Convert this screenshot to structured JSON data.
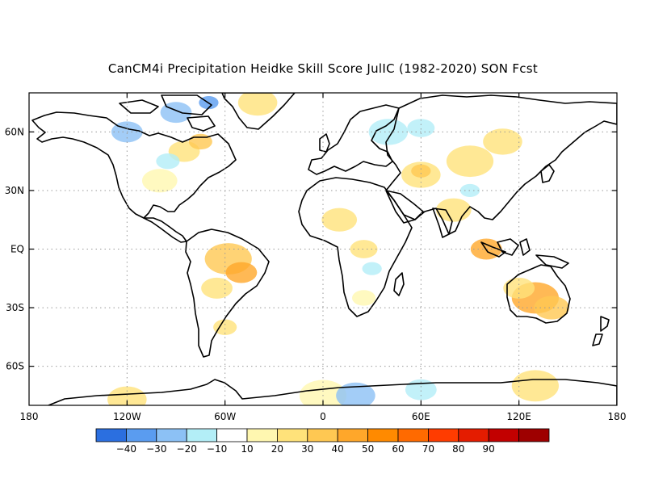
{
  "title": "CanCM4i Precipitation Heidke Skill Score JulIC (1982-2020) SON Fcst",
  "map": {
    "lon_range": [
      -180,
      180
    ],
    "lat_range": [
      -80,
      80
    ],
    "grid": "dotted",
    "lon_ticks": [
      {
        "value": -180,
        "label": "180"
      },
      {
        "value": -120,
        "label": "120W"
      },
      {
        "value": -60,
        "label": "60W"
      },
      {
        "value": 0,
        "label": "0"
      },
      {
        "value": 60,
        "label": "60E"
      },
      {
        "value": 120,
        "label": "120E"
      },
      {
        "value": 180,
        "label": "180"
      }
    ],
    "lat_ticks": [
      {
        "value": 60,
        "label": "60N"
      },
      {
        "value": 30,
        "label": "30N"
      },
      {
        "value": 0,
        "label": "EQ"
      },
      {
        "value": -30,
        "label": "30S"
      },
      {
        "value": -60,
        "label": "60S"
      }
    ]
  },
  "colorbar": {
    "colors": [
      "#2b6fe0",
      "#5a9cf0",
      "#8cc1f5",
      "#b3eef7",
      "#ffffff",
      "#fff7b0",
      "#ffe27a",
      "#ffc852",
      "#ffa72a",
      "#ff8a00",
      "#ff6a00",
      "#ff3c00",
      "#e41c00",
      "#c20000",
      "#9e0000"
    ],
    "labels": [
      "-40",
      "-30",
      "-20",
      "-10",
      "10",
      "20",
      "30",
      "40",
      "50",
      "60",
      "70",
      "80",
      "90"
    ]
  },
  "skill_regions": [
    {
      "lon": 130,
      "lat": -25,
      "r": 12,
      "level": "40",
      "color": "#ffa72a"
    },
    {
      "lon": 140,
      "lat": -30,
      "r": 9,
      "level": "30",
      "color": "#ffc852"
    },
    {
      "lon": 120,
      "lat": -20,
      "r": 8,
      "level": "20",
      "color": "#ffe27a"
    },
    {
      "lon": -58,
      "lat": -5,
      "r": 12,
      "level": "30",
      "color": "#ffc852"
    },
    {
      "lon": -50,
      "lat": -12,
      "r": 8,
      "level": "40",
      "color": "#ffa72a"
    },
    {
      "lon": -65,
      "lat": -20,
      "r": 8,
      "level": "20",
      "color": "#ffe27a"
    },
    {
      "lon": -60,
      "lat": -40,
      "r": 6,
      "level": "20",
      "color": "#ffe27a"
    },
    {
      "lon": 100,
      "lat": 0,
      "r": 8,
      "level": "40",
      "color": "#ffa72a"
    },
    {
      "lon": 80,
      "lat": 20,
      "r": 9,
      "level": "20",
      "color": "#ffe27a"
    },
    {
      "lon": 60,
      "lat": 38,
      "r": 10,
      "level": "20",
      "color": "#ffe27a"
    },
    {
      "lon": 60,
      "lat": 40,
      "r": 5,
      "level": "30",
      "color": "#ffc852"
    },
    {
      "lon": 90,
      "lat": 45,
      "r": 12,
      "level": "20",
      "color": "#ffe27a"
    },
    {
      "lon": 110,
      "lat": 55,
      "r": 10,
      "level": "20",
      "color": "#ffe27a"
    },
    {
      "lon": 10,
      "lat": 15,
      "r": 9,
      "level": "20",
      "color": "#ffe27a"
    },
    {
      "lon": 25,
      "lat": 0,
      "r": 7,
      "level": "20",
      "color": "#ffe27a"
    },
    {
      "lon": 25,
      "lat": -25,
      "r": 6,
      "level": "10",
      "color": "#fff7b0"
    },
    {
      "lon": -100,
      "lat": 35,
      "r": 9,
      "level": "10",
      "color": "#fff7b0"
    },
    {
      "lon": -85,
      "lat": 50,
      "r": 8,
      "level": "20",
      "color": "#ffe27a"
    },
    {
      "lon": -75,
      "lat": 55,
      "r": 6,
      "level": "30",
      "color": "#ffc852"
    },
    {
      "lon": -40,
      "lat": 75,
      "r": 10,
      "level": "20",
      "color": "#ffe27a"
    },
    {
      "lon": 0,
      "lat": -75,
      "r": 12,
      "level": "10",
      "color": "#fff7b0"
    },
    {
      "lon": -120,
      "lat": -77,
      "r": 10,
      "level": "20",
      "color": "#ffe27a"
    },
    {
      "lon": 130,
      "lat": -70,
      "r": 12,
      "level": "20",
      "color": "#ffe27a"
    },
    {
      "lon": -120,
      "lat": 60,
      "r": 8,
      "level": "-20",
      "color": "#8cc1f5"
    },
    {
      "lon": -90,
      "lat": 70,
      "r": 8,
      "level": "-20",
      "color": "#8cc1f5"
    },
    {
      "lon": -70,
      "lat": 75,
      "r": 5,
      "level": "-30",
      "color": "#5a9cf0"
    },
    {
      "lon": -95,
      "lat": 45,
      "r": 6,
      "level": "-10",
      "color": "#b3eef7"
    },
    {
      "lon": 40,
      "lat": 60,
      "r": 10,
      "level": "-10",
      "color": "#b3eef7"
    },
    {
      "lon": 60,
      "lat": 62,
      "r": 7,
      "level": "-10",
      "color": "#b3eef7"
    },
    {
      "lon": 20,
      "lat": -75,
      "r": 10,
      "level": "-20",
      "color": "#8cc1f5"
    },
    {
      "lon": 60,
      "lat": -72,
      "r": 8,
      "level": "-10",
      "color": "#b3eef7"
    },
    {
      "lon": 30,
      "lat": -10,
      "r": 5,
      "level": "-10",
      "color": "#b3eef7"
    },
    {
      "lon": 90,
      "lat": 30,
      "r": 5,
      "level": "-10",
      "color": "#b3eef7"
    }
  ]
}
